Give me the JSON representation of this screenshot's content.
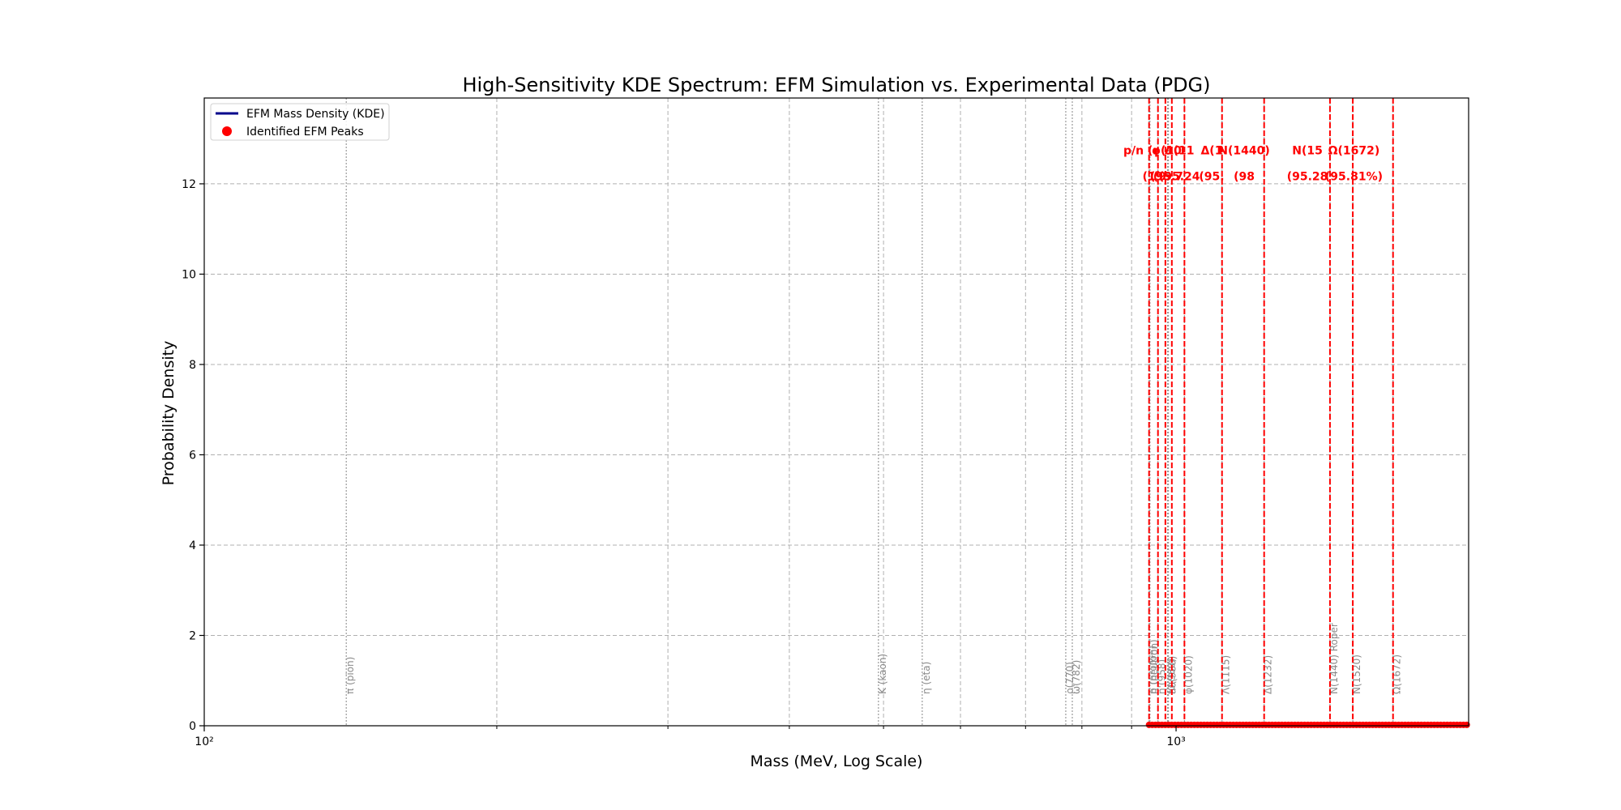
{
  "chart_data": {
    "type": "line",
    "title": "High-Sensitivity KDE Spectrum: EFM Simulation vs. Experimental Data (PDG)",
    "xlabel": "Mass (MeV, Log Scale)",
    "ylabel": "Probability Density",
    "xscale": "log",
    "xlim": [
      100,
      2000
    ],
    "ylim": [
      0,
      13.9
    ],
    "x_major_ticks": [
      100,
      1000
    ],
    "x_tick_labels": [
      "10²",
      "10³"
    ],
    "x_minor_ticks": [
      200,
      300,
      400,
      500,
      600,
      700,
      800,
      900
    ],
    "y_ticks": [
      0,
      2,
      4,
      6,
      8,
      10,
      12
    ],
    "y_tick_labels": [
      "0",
      "2",
      "4",
      "6",
      "8",
      "10",
      "12"
    ],
    "grid": true,
    "legend_position": "upper-left",
    "legend": [
      {
        "label": "EFM Mass Density (KDE)",
        "kind": "line",
        "color": "#00008b"
      },
      {
        "label": "Identified EFM Peaks",
        "kind": "marker",
        "color": "#ff0000"
      }
    ],
    "series": [
      {
        "name": "EFM Mass Density (KDE)",
        "color": "#00008b",
        "x": [
          940,
          1000,
          1100,
          1200,
          1300,
          1400,
          1500,
          1600,
          1700,
          1800,
          1900,
          2000
        ],
        "y": [
          0.02,
          0.02,
          0.02,
          0.02,
          0.02,
          0.02,
          0.02,
          0.02,
          0.02,
          0.02,
          0.02,
          0.02
        ]
      }
    ],
    "peak_markers": {
      "name": "Identified EFM Peaks",
      "color": "#ff0000",
      "x_start": 938,
      "x_end": 2000,
      "y": 0.02
    },
    "pdg_reference_lines": [
      {
        "label": "π (pion)",
        "mass": 140
      },
      {
        "label": "K (kaon)",
        "mass": 494
      },
      {
        "label": "η (eta)",
        "mass": 548
      },
      {
        "label": "ρ(770)",
        "mass": 770
      },
      {
        "label": "ω(782)",
        "mass": 782
      },
      {
        "label": "p (proton)",
        "mass": 938
      },
      {
        "label": "n (neutron)",
        "mass": 940
      },
      {
        "label": "η'(958)",
        "mass": 958
      },
      {
        "label": "f0(980)",
        "mass": 980
      },
      {
        "label": "a0(980)",
        "mass": 982
      },
      {
        "label": "φ(1020)",
        "mass": 1020
      },
      {
        "label": "Λ(1115)",
        "mass": 1115
      },
      {
        "label": "Δ(1232)",
        "mass": 1232
      },
      {
        "label": "N(1440) Roper",
        "mass": 1440
      },
      {
        "label": "N(1520)",
        "mass": 1520
      },
      {
        "label": "Ω(1672)",
        "mass": 1672
      }
    ],
    "matched_peak_lines": [
      938,
      958,
      975,
      990,
      1020,
      1115,
      1232,
      1440,
      1520,
      1672
    ],
    "match_annotations": [
      {
        "line1": "p/n (r",
        "line2": "",
        "mass": 920
      },
      {
        "line1": "",
        "line2": "(1",
        "mass": 938
      },
      {
        "line1": "",
        "line2": "(9",
        "mass": 962
      },
      {
        "line1": "φ(10",
        "line2": "(95.7",
        "mass": 978
      },
      {
        "line1": "Λ(11",
        "line2": "(95.24",
        "mass": 1008
      },
      {
        "line1": "Δ(1",
        "line2": "(95.",
        "mass": 1088
      },
      {
        "line1": "N(1440)",
        "line2": "(98",
        "mass": 1175
      },
      {
        "line1": "N(15",
        "line2": "(95.28",
        "mass": 1365
      },
      {
        "line1": "Ω(1672)",
        "line2": "(95.81%)",
        "mass": 1524
      }
    ]
  }
}
